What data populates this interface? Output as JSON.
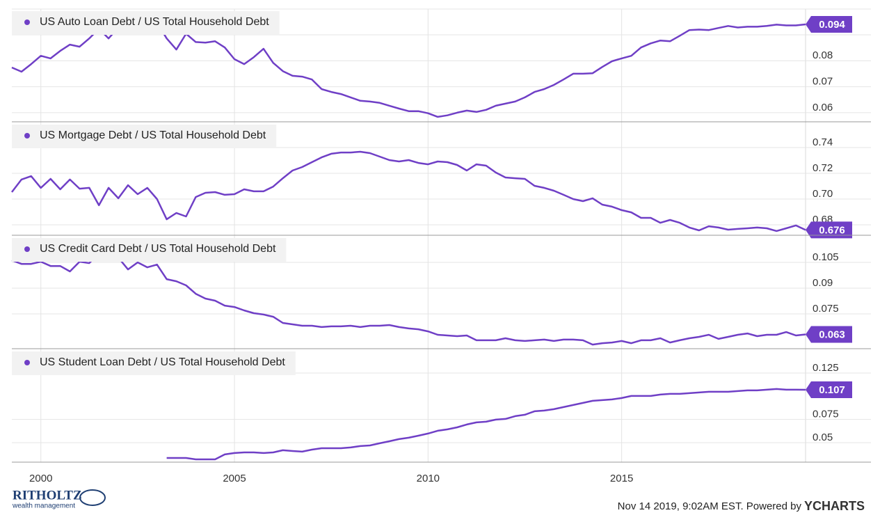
{
  "x_axis": {
    "x": [
      1999.25,
      1999.5,
      1999.75,
      2000,
      2000.25,
      2000.5,
      2000.75,
      2001,
      2001.25,
      2001.5,
      2001.75,
      2002,
      2002.25,
      2002.5,
      2002.75,
      2003,
      2003.25,
      2003.5,
      2003.75,
      2004,
      2004.25,
      2004.5,
      2004.75,
      2005,
      2005.25,
      2005.5,
      2005.75,
      2006,
      2006.25,
      2006.5,
      2006.75,
      2007,
      2007.25,
      2007.5,
      2007.75,
      2008,
      2008.25,
      2008.5,
      2008.75,
      2009,
      2009.25,
      2009.5,
      2009.75,
      2010,
      2010.25,
      2010.5,
      2010.75,
      2011,
      2011.25,
      2011.5,
      2011.75,
      2012,
      2012.25,
      2012.5,
      2012.75,
      2013,
      2013.25,
      2013.5,
      2013.75,
      2014,
      2014.25,
      2014.5,
      2014.75,
      2015,
      2015.25,
      2015.5,
      2015.75,
      2016,
      2016.25,
      2016.5,
      2016.75,
      2017,
      2017.25,
      2017.5,
      2017.75,
      2018,
      2018.25,
      2018.5,
      2018.75,
      2019,
      2019.25,
      2019.5,
      2019.75
    ],
    "xlim": [
      1999.25,
      2019.75
    ],
    "xticks": [
      2000,
      2005,
      2010,
      2015
    ],
    "grid": true
  },
  "chart_data": [
    {
      "type": "line",
      "series": [
        {
          "name": "US Auto Loan Debt / US Total Household Debt",
          "color": "#6f3fc6",
          "values": [
            0.0774,
            0.0758,
            0.0787,
            0.0819,
            0.0809,
            0.0838,
            0.0862,
            0.0854,
            0.0886,
            0.0923,
            0.0886,
            0.0928,
            0.0928,
            0.0923,
            0.0912,
            0.0947,
            0.0886,
            0.0843,
            0.0904,
            0.0872,
            0.087,
            0.0875,
            0.0851,
            0.0806,
            0.0787,
            0.0814,
            0.0846,
            0.0792,
            0.076,
            0.0742,
            0.0739,
            0.0728,
            0.0691,
            0.068,
            0.0672,
            0.0659,
            0.0646,
            0.0643,
            0.0638,
            0.0627,
            0.0616,
            0.0606,
            0.0606,
            0.0598,
            0.0584,
            0.059,
            0.06,
            0.0608,
            0.0603,
            0.0611,
            0.0627,
            0.0635,
            0.0643,
            0.0659,
            0.068,
            0.0691,
            0.0707,
            0.0728,
            0.075,
            0.075,
            0.0752,
            0.0776,
            0.0798,
            0.0809,
            0.0819,
            0.0851,
            0.0867,
            0.0878,
            0.0875,
            0.0896,
            0.0918,
            0.092,
            0.0918,
            0.0926,
            0.0934,
            0.0928,
            0.0931,
            0.0931,
            0.0934,
            0.0939,
            0.0936,
            0.0936,
            0.094
          ]
        }
      ],
      "ylim": [
        0.0565,
        0.0999
      ],
      "yticks": [
        0.06,
        0.07,
        0.08,
        0.09
      ],
      "grid": true
    },
    {
      "type": "line",
      "series": [
        {
          "name": "US Mortgage Debt / US Total Household Debt",
          "color": "#6f3fc6",
          "values": [
            0.7054,
            0.7152,
            0.7178,
            0.7087,
            0.7157,
            0.7076,
            0.7152,
            0.7081,
            0.7087,
            0.6952,
            0.7087,
            0.7006,
            0.7108,
            0.7038,
            0.7087,
            0.7,
            0.6843,
            0.6892,
            0.6865,
            0.7016,
            0.7049,
            0.7054,
            0.7033,
            0.7038,
            0.7076,
            0.706,
            0.706,
            0.7097,
            0.7162,
            0.7222,
            0.7249,
            0.7287,
            0.7324,
            0.7352,
            0.7362,
            0.7362,
            0.7368,
            0.7357,
            0.733,
            0.7303,
            0.7292,
            0.7303,
            0.7281,
            0.727,
            0.7292,
            0.7287,
            0.7265,
            0.7222,
            0.727,
            0.726,
            0.7206,
            0.7168,
            0.7162,
            0.7157,
            0.7103,
            0.7087,
            0.7065,
            0.7033,
            0.7,
            0.6984,
            0.7006,
            0.6957,
            0.6941,
            0.6914,
            0.6897,
            0.6854,
            0.6854,
            0.6816,
            0.6838,
            0.6816,
            0.6779,
            0.6757,
            0.6789,
            0.6779,
            0.6762,
            0.6768,
            0.6773,
            0.6779,
            0.6773,
            0.6752,
            0.6773,
            0.6795,
            0.676
          ]
        }
      ],
      "ylim": [
        0.6719,
        0.7595
      ],
      "yticks": [
        0.68,
        {
          "value": 0.7,
          "label": "0.70"
        },
        0.72,
        0.74
      ],
      "grid": true
    },
    {
      "type": "line",
      "series": [
        {
          "name": "US Credit Card Debt / US Total Household Debt",
          "color": "#6f3fc6",
          "values": [
            0.1062,
            0.1041,
            0.1041,
            0.1054,
            0.1029,
            0.1029,
            0.0997,
            0.1054,
            0.1046,
            0.1102,
            0.1074,
            0.1078,
            0.1009,
            0.105,
            0.1021,
            0.1037,
            0.0952,
            0.094,
            0.0916,
            0.0867,
            0.0839,
            0.0827,
            0.0798,
            0.079,
            0.077,
            0.0754,
            0.0746,
            0.0733,
            0.0697,
            0.0689,
            0.0681,
            0.0681,
            0.0673,
            0.0677,
            0.0677,
            0.0681,
            0.0673,
            0.0681,
            0.0681,
            0.0685,
            0.0673,
            0.0665,
            0.066,
            0.0648,
            0.0628,
            0.0624,
            0.062,
            0.0624,
            0.0596,
            0.0596,
            0.0596,
            0.0608,
            0.0596,
            0.0592,
            0.0596,
            0.06,
            0.0592,
            0.06,
            0.06,
            0.0596,
            0.0571,
            0.0579,
            0.0583,
            0.0592,
            0.0579,
            0.0596,
            0.0596,
            0.0608,
            0.0583,
            0.0596,
            0.0608,
            0.0616,
            0.0628,
            0.0604,
            0.0616,
            0.0628,
            0.0636,
            0.062,
            0.0628,
            0.0628,
            0.0644,
            0.0624,
            0.063
          ]
        }
      ],
      "ylim": [
        0.0547,
        0.1204
      ],
      "yticks": [
        0.075,
        0.09,
        0.105
      ],
      "grid": true
    },
    {
      "type": "line",
      "series": [
        {
          "name": "US Student Loan Debt / US Total Household Debt",
          "color": "#6f3fc6",
          "values": [
            null,
            null,
            null,
            null,
            null,
            null,
            null,
            null,
            null,
            null,
            null,
            null,
            null,
            null,
            null,
            null,
            0.0335,
            0.0335,
            0.0335,
            0.032,
            0.032,
            0.032,
            0.0373,
            0.0388,
            0.0395,
            0.0395,
            0.0388,
            0.0395,
            0.0418,
            0.041,
            0.0403,
            0.0425,
            0.044,
            0.044,
            0.044,
            0.0448,
            0.0463,
            0.047,
            0.0493,
            0.0515,
            0.0538,
            0.0553,
            0.0575,
            0.0598,
            0.0628,
            0.0643,
            0.0665,
            0.0696,
            0.0718,
            0.0726,
            0.0748,
            0.0756,
            0.0786,
            0.0801,
            0.0838,
            0.0846,
            0.0861,
            0.0883,
            0.0906,
            0.0928,
            0.0951,
            0.0958,
            0.0966,
            0.0981,
            0.1003,
            0.1003,
            0.1003,
            0.1018,
            0.1026,
            0.1026,
            0.1033,
            0.1041,
            0.1048,
            0.1048,
            0.1048,
            0.1056,
            0.1063,
            0.1063,
            0.1071,
            0.1078,
            0.1071,
            0.1071,
            0.107
          ]
        }
      ],
      "ylim": [
        0.029,
        0.1505
      ],
      "yticks": [
        0.05,
        0.075,
        0.125
      ],
      "grid": true
    }
  ],
  "footer": {
    "logo": "RITHOLTZ",
    "logo_sub": "wealth management",
    "credit": "Nov 14 2019, 9:02AM EST. Powered by",
    "brand": "YCHARTS"
  }
}
